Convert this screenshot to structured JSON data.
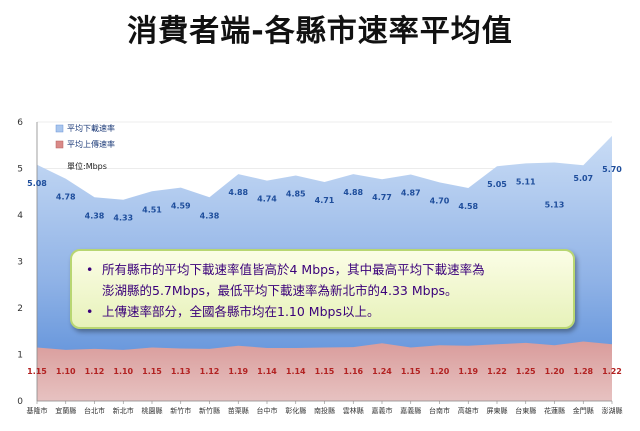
{
  "title": "消費者端-各縣市速率平均值",
  "chart_data": {
    "type": "area",
    "title": "消費者端-各縣市速率平均值",
    "unit": "單位:Mbps",
    "ylim": [
      0,
      6
    ],
    "yticks": [
      0,
      1,
      2,
      3,
      4,
      5,
      6
    ],
    "legend_position": "top-left",
    "categories": [
      "基隆市",
      "宜蘭縣",
      "台北市",
      "新北市",
      "桃園縣",
      "新竹市",
      "新竹縣",
      "苗栗縣",
      "台中市",
      "彰化縣",
      "南投縣",
      "雲林縣",
      "嘉義市",
      "嘉義縣",
      "台南市",
      "高雄市",
      "屏東縣",
      "台東縣",
      "花蓮縣",
      "金門縣",
      "澎湖縣"
    ],
    "series": [
      {
        "name": "平均下載速率",
        "color": "#a9c6ee",
        "values": [
          5.08,
          4.78,
          4.38,
          4.33,
          4.51,
          4.59,
          4.38,
          4.88,
          4.74,
          4.85,
          4.71,
          4.88,
          4.77,
          4.87,
          4.7,
          4.58,
          5.05,
          5.11,
          5.13,
          5.07,
          5.7
        ]
      },
      {
        "name": "平均上傳速率",
        "color": "#d98a88",
        "values": [
          1.15,
          1.1,
          1.12,
          1.1,
          1.15,
          1.13,
          1.12,
          1.19,
          1.14,
          1.14,
          1.15,
          1.16,
          1.24,
          1.15,
          1.2,
          1.19,
          1.22,
          1.25,
          1.2,
          1.28,
          1.22
        ]
      }
    ]
  },
  "notes": [
    {
      "bullet": "•",
      "lines": [
        "所有縣市的平均下載速率值皆高於4 Mbps，其中最高平均下載速率為",
        "澎湖縣的5.7Mbps，最低平均下載速率為新北市的4.33 Mbps。"
      ]
    },
    {
      "bullet": "•",
      "lines": [
        "上傳速率部分，全國各縣市均在1.10 Mbps以上。"
      ]
    }
  ]
}
